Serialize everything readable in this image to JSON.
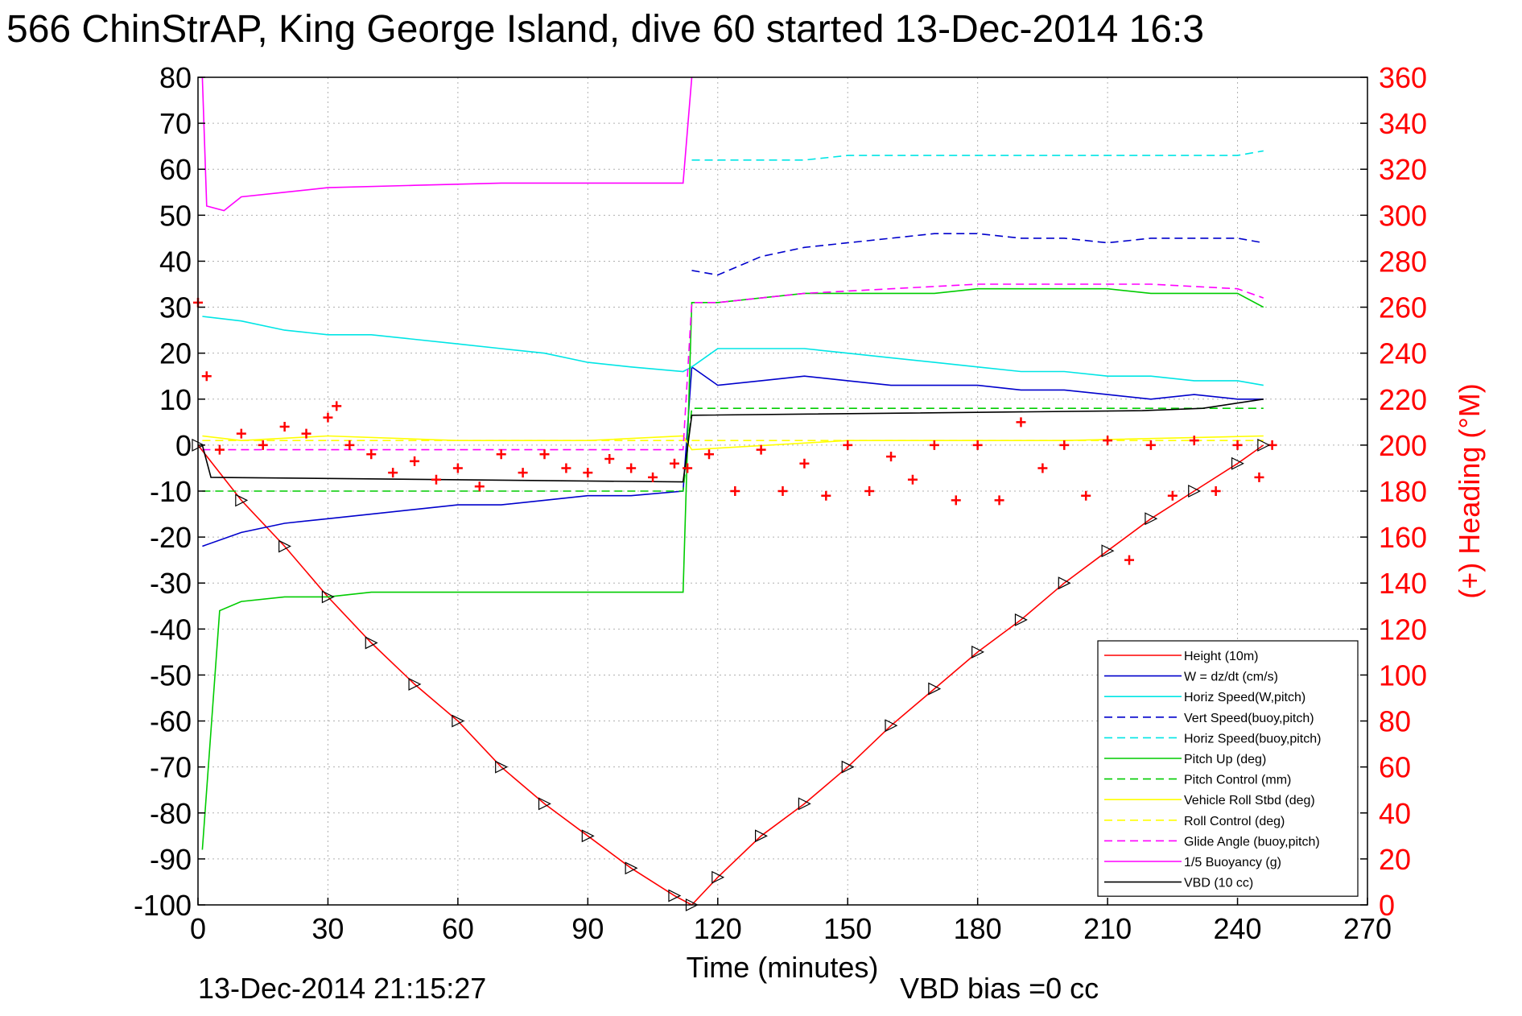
{
  "title": "566 ChinStrAP, King George Island, dive 60 started 13-Dec-2014 16:3",
  "footer_left": "13-Dec-2014 21:15:27",
  "footer_right": "VBD bias =0 cc",
  "colors": {
    "red": "#ff0000",
    "blue": "#0000cc",
    "cyan": "#00e5e5",
    "green": "#00cc00",
    "yellow": "#ffff00",
    "magenta": "#ff00ff",
    "black": "#000000",
    "grid": "#b0b0b0"
  },
  "chart_data": {
    "type": "line",
    "xlabel": "Time (minutes)",
    "ylabel": "",
    "ylabel_right": "(+) Heading (°M)",
    "xlim": [
      0,
      270
    ],
    "ylim": [
      -100,
      80
    ],
    "ylim_right": [
      0,
      360
    ],
    "x_ticks": [
      "0",
      "30",
      "60",
      "90",
      "120",
      "150",
      "180",
      "210",
      "240",
      "270"
    ],
    "y_ticks": [
      "80",
      "70",
      "60",
      "50",
      "40",
      "30",
      "20",
      "10",
      "0",
      "-10",
      "-20",
      "-30",
      "-40",
      "-50",
      "-60",
      "-70",
      "-80",
      "-90",
      "-100"
    ],
    "y_ticks_right": [
      "360",
      "340",
      "320",
      "300",
      "280",
      "260",
      "240",
      "220",
      "200",
      "180",
      "160",
      "140",
      "120",
      "100",
      "80",
      "60",
      "40",
      "20",
      "0"
    ],
    "grid": true,
    "legend_position": "bottom-right",
    "series": [
      {
        "name": "Height (10m)",
        "color": "red",
        "style": "solid",
        "x": [
          0,
          10,
          20,
          30,
          40,
          50,
          60,
          70,
          80,
          90,
          100,
          110,
          114,
          120,
          130,
          140,
          150,
          160,
          170,
          180,
          190,
          200,
          210,
          220,
          230,
          240,
          246
        ],
        "y": [
          0,
          -12,
          -22,
          -33,
          -43,
          -52,
          -60,
          -70,
          -78,
          -85,
          -92,
          -98,
          -100,
          -94,
          -85,
          -78,
          -70,
          -61,
          -53,
          -45,
          -38,
          -30,
          -23,
          -16,
          -10,
          -4,
          0
        ]
      },
      {
        "name": "W = dz/dt (cm/s)",
        "color": "blue",
        "style": "solid",
        "x": [
          1,
          10,
          20,
          30,
          40,
          50,
          60,
          70,
          80,
          90,
          100,
          112,
          114,
          120,
          130,
          140,
          150,
          160,
          170,
          180,
          190,
          200,
          210,
          220,
          230,
          240,
          246
        ],
        "y": [
          -22,
          -19,
          -17,
          -16,
          -15,
          -14,
          -13,
          -13,
          -12,
          -11,
          -11,
          -10,
          17,
          13,
          14,
          15,
          14,
          13,
          13,
          13,
          12,
          12,
          11,
          10,
          11,
          10,
          10
        ]
      },
      {
        "name": "Horiz Speed(W,pitch)",
        "color": "cyan",
        "style": "solid",
        "x": [
          1,
          10,
          20,
          30,
          40,
          50,
          60,
          70,
          80,
          90,
          100,
          112,
          114,
          120,
          130,
          140,
          150,
          160,
          170,
          180,
          190,
          200,
          210,
          220,
          230,
          240,
          246
        ],
        "y": [
          28,
          27,
          25,
          24,
          24,
          23,
          22,
          21,
          20,
          18,
          17,
          16,
          17,
          21,
          21,
          21,
          20,
          19,
          18,
          17,
          16,
          16,
          15,
          15,
          14,
          14,
          13
        ]
      },
      {
        "name": "Vert Speed(buoy,pitch)",
        "color": "blue",
        "style": "dashed",
        "x": [
          114,
          120,
          130,
          140,
          150,
          160,
          170,
          180,
          190,
          200,
          210,
          220,
          230,
          240,
          246
        ],
        "y": [
          38,
          37,
          41,
          43,
          44,
          45,
          46,
          46,
          45,
          45,
          44,
          45,
          45,
          45,
          44
        ]
      },
      {
        "name": "Horiz Speed(buoy,pitch)",
        "color": "cyan",
        "style": "dashed",
        "x": [
          114,
          120,
          130,
          140,
          150,
          160,
          170,
          180,
          190,
          200,
          210,
          220,
          230,
          240,
          246
        ],
        "y": [
          62,
          62,
          62,
          62,
          63,
          63,
          63,
          63,
          63,
          63,
          63,
          63,
          63,
          63,
          64
        ]
      },
      {
        "name": "Pitch Up (deg)",
        "color": "green",
        "style": "solid",
        "x": [
          1,
          5,
          10,
          20,
          30,
          40,
          50,
          60,
          70,
          80,
          90,
          100,
          112,
          114,
          120,
          130,
          140,
          150,
          160,
          170,
          180,
          190,
          200,
          210,
          220,
          230,
          240,
          246
        ],
        "y": [
          -88,
          -36,
          -34,
          -33,
          -33,
          -32,
          -32,
          -32,
          -32,
          -32,
          -32,
          -32,
          -32,
          31,
          31,
          32,
          33,
          33,
          33,
          33,
          34,
          34,
          34,
          34,
          33,
          33,
          33,
          30
        ]
      },
      {
        "name": "Pitch Control (mm)",
        "color": "green",
        "style": "dashed",
        "x": [
          1,
          112,
          114,
          246
        ],
        "y": [
          -10,
          -10,
          8,
          8
        ]
      },
      {
        "name": "Vehicle Roll Stbd (deg)",
        "color": "yellow",
        "style": "solid",
        "x": [
          1,
          10,
          30,
          60,
          90,
          112,
          114,
          150,
          200,
          246
        ],
        "y": [
          2,
          1,
          2,
          1,
          1,
          2,
          -1,
          1,
          1,
          2
        ]
      },
      {
        "name": "Roll Control (deg)",
        "color": "yellow",
        "style": "dashed",
        "x": [
          1,
          112,
          114,
          246
        ],
        "y": [
          1,
          1,
          1,
          1
        ]
      },
      {
        "name": "Glide Angle (buoy,pitch)",
        "color": "magenta",
        "style": "dashed",
        "x": [
          1,
          112,
          114,
          120,
          140,
          160,
          180,
          200,
          220,
          240,
          246
        ],
        "y": [
          -1,
          -1,
          31,
          31,
          33,
          34,
          35,
          35,
          35,
          34,
          32
        ]
      },
      {
        "name": "1/5 Buoyancy (g)",
        "color": "magenta",
        "style": "solid",
        "x": [
          1,
          2,
          6,
          10,
          20,
          30,
          50,
          70,
          90,
          112,
          114
        ],
        "y": [
          80,
          52,
          51,
          54,
          55,
          56,
          56.5,
          57,
          57,
          57,
          80
        ]
      },
      {
        "name": "VBD (10 cc)",
        "color": "black",
        "style": "solid",
        "x": [
          1,
          3,
          112,
          114,
          218,
          232,
          246
        ],
        "y": [
          0,
          -7,
          -8,
          6.5,
          7.5,
          8,
          10
        ]
      },
      {
        "name": "Heading",
        "color": "red",
        "style": "markers",
        "axis": "right",
        "x": [
          0,
          2,
          5,
          10,
          15,
          20,
          25,
          30,
          32,
          35,
          40,
          45,
          50,
          55,
          60,
          65,
          70,
          75,
          80,
          85,
          90,
          95,
          100,
          105,
          110,
          113,
          118,
          124,
          130,
          135,
          140,
          145,
          150,
          155,
          160,
          165,
          170,
          175,
          180,
          185,
          190,
          195,
          200,
          205,
          210,
          215,
          220,
          225,
          230,
          235,
          240,
          245,
          248
        ],
        "y": [
          262,
          230,
          198,
          205,
          200,
          208,
          205,
          212,
          217,
          200,
          196,
          188,
          193,
          185,
          190,
          182,
          196,
          188,
          196,
          190,
          188,
          194,
          190,
          186,
          192,
          190,
          196,
          180,
          198,
          180,
          192,
          178,
          200,
          180,
          195,
          185,
          200,
          176,
          200,
          176,
          210,
          190,
          200,
          178,
          202,
          150,
          200,
          178,
          202,
          180,
          200,
          186,
          200
        ]
      }
    ]
  }
}
